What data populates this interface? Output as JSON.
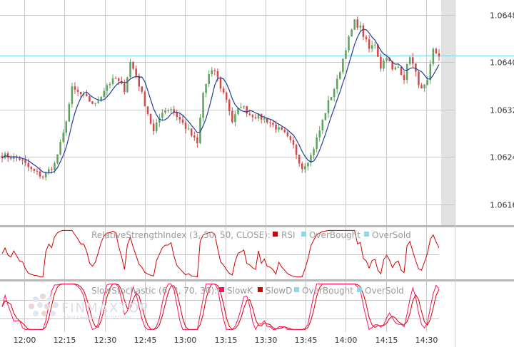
{
  "chart_data": {
    "type": "candlestick",
    "price_axis": {
      "ticks": [
        "1.0648",
        "1.0640",
        "1.0632",
        "1.0624",
        "1.0616"
      ],
      "tick_values": [
        1.0648,
        1.064,
        1.0632,
        1.0624,
        1.0616
      ],
      "ylim": [
        1.06125,
        1.06505
      ],
      "horizontal_line": 1.06411
    },
    "time_axis": {
      "ticks": [
        "12:00",
        "12:15",
        "12:30",
        "12:45",
        "13:00",
        "13:15",
        "13:30",
        "13:45",
        "14:00",
        "14:15",
        "14:30"
      ]
    },
    "colors": {
      "up": "#5aa55a",
      "down": "#d14a4a",
      "ma": "#1f3f9a",
      "hline": "#7fd3e0",
      "rsi": "#d40000",
      "stoch_k": "#ff1060",
      "stoch_d": "#d40000",
      "band": "#8fd8ea",
      "future": "#e2e2e2"
    },
    "close_keyframes": [
      [
        0,
        1.06243
      ],
      [
        6,
        1.06237
      ],
      [
        10,
        1.06218
      ],
      [
        14,
        1.06207
      ],
      [
        18,
        1.06228
      ],
      [
        21,
        1.06278
      ],
      [
        24,
        1.06355
      ],
      [
        28,
        1.06342
      ],
      [
        32,
        1.06328
      ],
      [
        36,
        1.06362
      ],
      [
        39,
        1.06372
      ],
      [
        42,
        1.06354
      ],
      [
        44,
        1.064
      ],
      [
        46,
        1.06378
      ],
      [
        49,
        1.0633
      ],
      [
        52,
        1.06282
      ],
      [
        55,
        1.06318
      ],
      [
        58,
        1.06322
      ],
      [
        61,
        1.06303
      ],
      [
        64,
        1.06284
      ],
      [
        67,
        1.06262
      ],
      [
        69,
        1.06348
      ],
      [
        71,
        1.06378
      ],
      [
        73,
        1.06386
      ],
      [
        75,
        1.06358
      ],
      [
        77,
        1.06338
      ],
      [
        79,
        1.063
      ],
      [
        82,
        1.06328
      ],
      [
        85,
        1.06312
      ],
      [
        88,
        1.06308
      ],
      [
        91,
        1.06302
      ],
      [
        94,
        1.0629
      ],
      [
        97,
        1.06278
      ],
      [
        100,
        1.06258
      ],
      [
        103,
        1.06222
      ],
      [
        106,
        1.06242
      ],
      [
        109,
        1.06285
      ],
      [
        112,
        1.06332
      ],
      [
        115,
        1.06368
      ],
      [
        118,
        1.06425
      ],
      [
        121,
        1.06468
      ],
      [
        123,
        1.06458
      ],
      [
        126,
        1.06422
      ],
      [
        128,
        1.06432
      ],
      [
        130,
        1.06392
      ],
      [
        132,
        1.06412
      ],
      [
        134,
        1.06386
      ],
      [
        136,
        1.06392
      ],
      [
        138,
        1.06374
      ],
      [
        140,
        1.06412
      ],
      [
        142,
        1.0638
      ],
      [
        144,
        1.06352
      ],
      [
        146,
        1.06365
      ],
      [
        148,
        1.0642
      ],
      [
        150,
        1.06412
      ]
    ],
    "rsi": {
      "title": "RelativeStrengthIndex (3, 50, 50, CLOSE):",
      "legend": [
        "RSI",
        "OverBought",
        "OverSold"
      ],
      "params": [
        3,
        50,
        50,
        "CLOSE"
      ],
      "overbought": 50,
      "oversold": 50
    },
    "stochastic": {
      "title": "SlowStochastic (6, 3, 70, 30):",
      "legend": [
        "SlowK",
        "SlowD",
        "OverBought",
        "OverSold"
      ],
      "params": [
        6,
        3,
        70,
        30
      ],
      "overbought": 70,
      "oversold": 30
    }
  },
  "watermark": {
    "main": "FINMAXTOP",
    "sub": "БИНАРНЫЕ ОПЦИОНЫ"
  }
}
